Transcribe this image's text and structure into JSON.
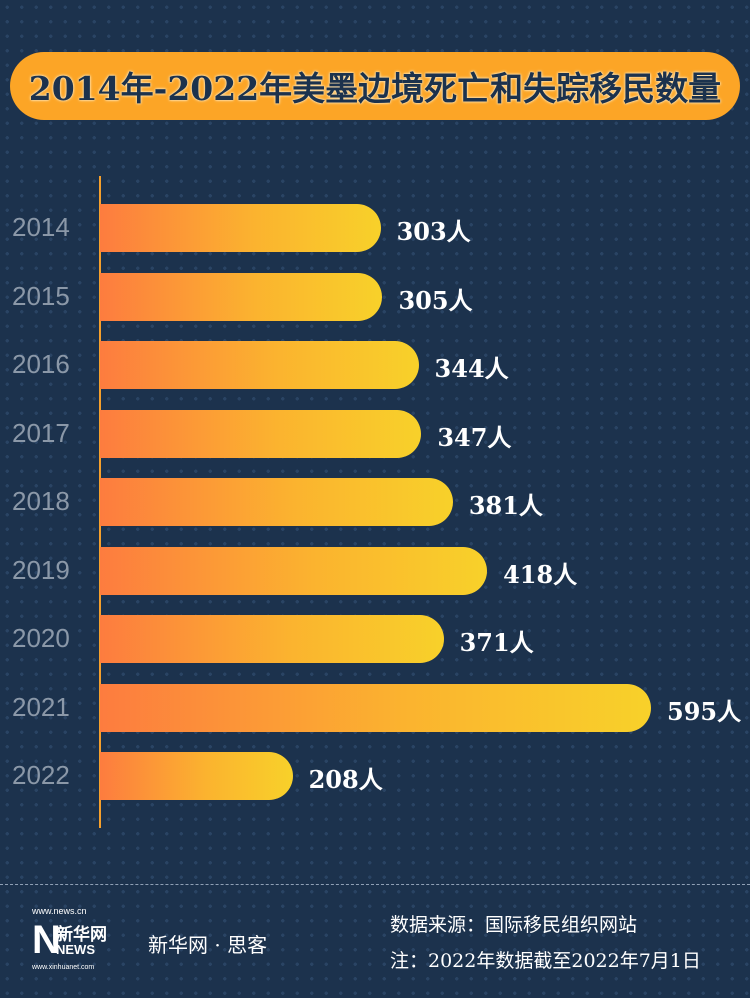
{
  "title": "2014年-2022年美墨边境死亡和失踪移民数量",
  "chart_data": {
    "type": "bar",
    "orientation": "horizontal",
    "title": "2014年-2022年美墨边境死亡和失踪移民数量",
    "categories": [
      "2014",
      "2015",
      "2016",
      "2017",
      "2018",
      "2019",
      "2020",
      "2021",
      "2022"
    ],
    "values": [
      303,
      305,
      344,
      347,
      381,
      418,
      371,
      595,
      208
    ],
    "labels": [
      "303人",
      "305人",
      "344人",
      "347人",
      "381人",
      "418人",
      "371人",
      "595人",
      "208人"
    ],
    "unit": "人",
    "xlim": [
      0,
      595
    ],
    "colors": {
      "bar_start": "#fd7c3f",
      "bar_end": "#f8d12a",
      "background": "#1c324d",
      "title_bg": "#fca526"
    }
  },
  "footer": {
    "logo_url_top": "www.news.cn",
    "logo_cn": "新华网",
    "logo_news": "NEWS",
    "logo_url_bottom": "www.xinhuanet.com",
    "brand": "新华网 · 思客",
    "source": "数据来源：国际移民组织网站",
    "note": "注：2022年数据截至2022年7月1日"
  }
}
